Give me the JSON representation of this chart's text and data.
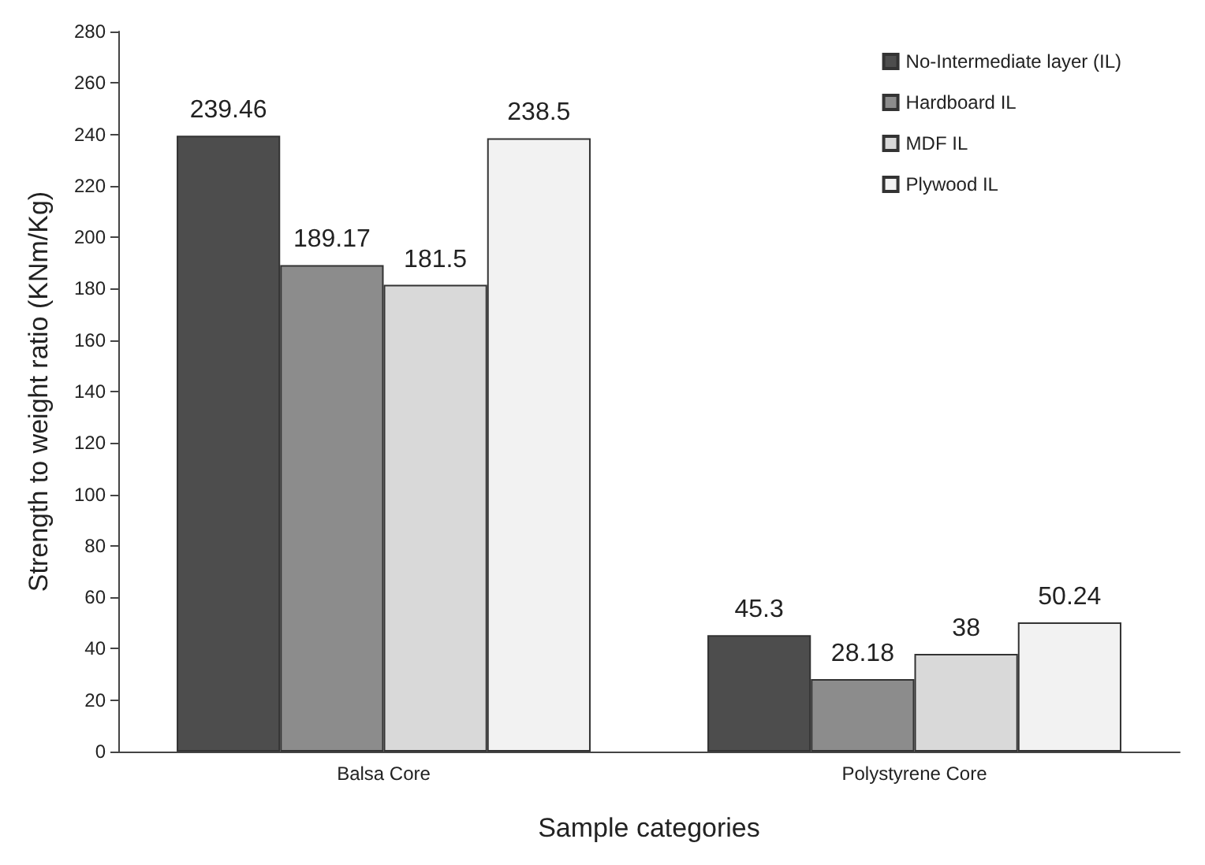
{
  "chart_data": {
    "type": "bar",
    "xlabel": "Sample categories",
    "ylabel": "Strength to weight ratio (KNm/Kg)",
    "categories": [
      "Balsa Core",
      "Polystyrene Core"
    ],
    "series": [
      {
        "name": "No-Intermediate layer (IL)",
        "color": "#4d4d4d",
        "values": [
          239.46,
          45.3
        ]
      },
      {
        "name": "Hardboard IL",
        "color": "#8c8c8c",
        "values": [
          189.17,
          28.18
        ]
      },
      {
        "name": "MDF IL",
        "color": "#d9d9d9",
        "values": [
          181.5,
          38
        ]
      },
      {
        "name": "Plywood IL",
        "color": "#f2f2f2",
        "values": [
          238.5,
          50.24
        ]
      }
    ],
    "ylim": [
      0,
      280
    ],
    "yticks": [
      0,
      20,
      40,
      60,
      80,
      100,
      120,
      140,
      160,
      180,
      200,
      220,
      240,
      260,
      280
    ],
    "data_labels": true,
    "legend": "top right",
    "grid": false
  }
}
